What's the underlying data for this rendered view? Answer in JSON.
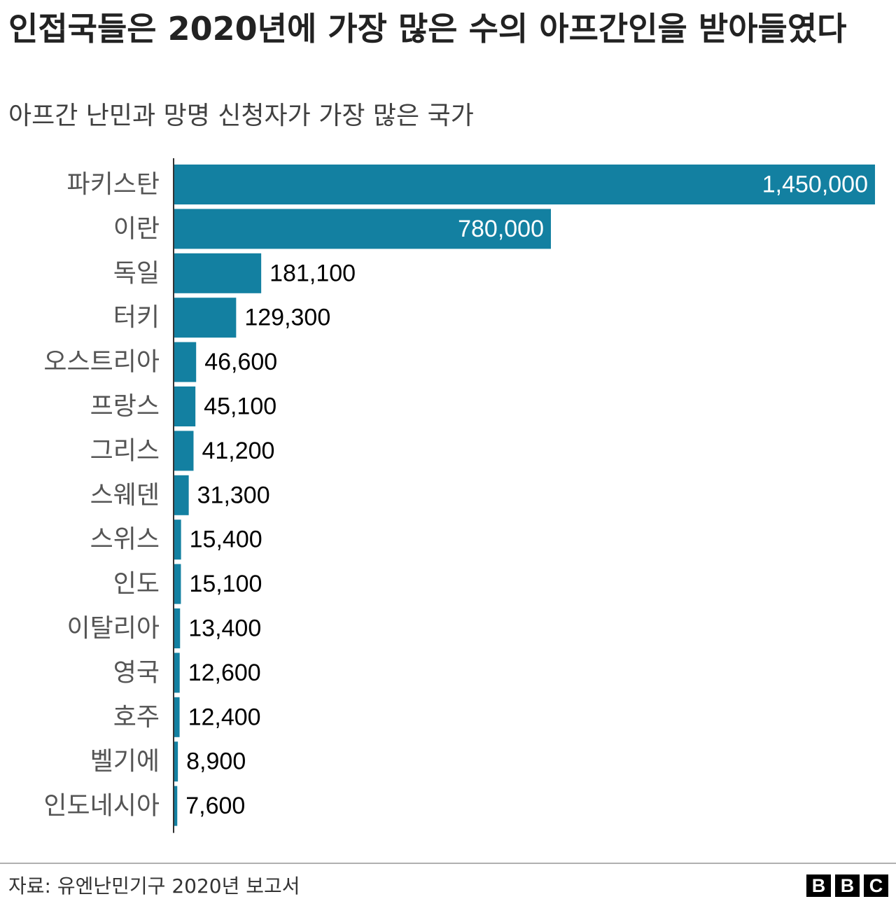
{
  "header": {
    "title": "인접국들은 2020년에 가장 많은 수의 아프간인을 받아들였다",
    "subtitle": "아프간 난민과 망명 신청자가 가장 많은 국가"
  },
  "footer": {
    "source": "자료: 유엔난민기구 2020년 보고서",
    "logo_letters": [
      "B",
      "B",
      "C"
    ]
  },
  "colors": {
    "bar": "#1380a1",
    "axis": "#333333",
    "category_text": "#555555",
    "value_text": "#000000",
    "value_text_inside": "#ffffff"
  },
  "chart_data": {
    "type": "bar",
    "orientation": "horizontal",
    "title": "인접국들은 2020년에 가장 많은 수의 아프간인을 받아들였다",
    "subtitle": "아프간 난민과 망명 신청자가 가장 많은 국가",
    "categories": [
      "파키스탄",
      "이란",
      "독일",
      "터키",
      "오스트리아",
      "프랑스",
      "그리스",
      "스웨덴",
      "스위스",
      "인도",
      "이탈리아",
      "영국",
      "호주",
      "벨기에",
      "인도네시아"
    ],
    "values": [
      1450000,
      780000,
      181100,
      129300,
      46600,
      45100,
      41200,
      31300,
      15400,
      15100,
      13400,
      12600,
      12400,
      8900,
      7600
    ],
    "value_labels": [
      "1,450,000",
      "780,000",
      "181,100",
      "129,300",
      "46,600",
      "45,100",
      "41,200",
      "31,300",
      "15,400",
      "15,100",
      "13,400",
      "12,600",
      "12,400",
      "8,900",
      "7,600"
    ],
    "xlim": [
      0,
      1450000
    ],
    "grid": false,
    "legend": "none"
  }
}
